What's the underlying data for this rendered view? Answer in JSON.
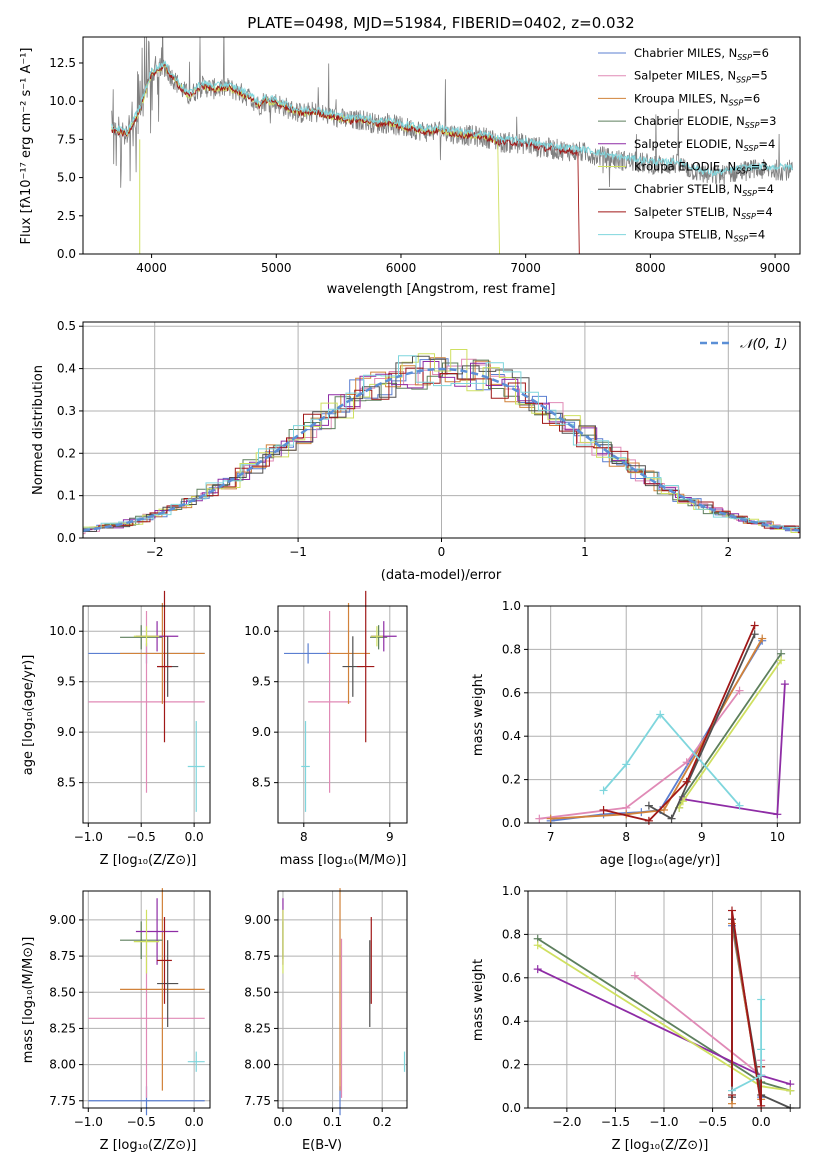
{
  "colors": {
    "blue": "#5b7fd1",
    "pink": "#e08ab6",
    "orange": "#d1823a",
    "green": "#5d7f5d",
    "purple": "#8e2ca5",
    "yellowgreen": "#cfe060",
    "darkgray": "#505050",
    "darkred": "#a01818",
    "cyan": "#7fd6dd",
    "spectrum": "#808080",
    "normal": "#5b8fd6"
  },
  "spectrum": {
    "title": "PLATE=0498, MJD=51984, FIBERID=0402, z=0.032",
    "xlabel": "wavelength [Angstrom, rest frame]",
    "ylabel": "Flux [fλ10⁻¹⁷ erg cm⁻² s⁻¹ A⁻¹]",
    "xticks": [
      "4000",
      "5000",
      "6000",
      "7000",
      "8000",
      "9000"
    ],
    "yticks": [
      "0.0",
      "2.5",
      "5.0",
      "7.5",
      "10.0",
      "12.5"
    ],
    "legend": [
      {
        "label": "Chabrier MILES, N",
        "sub": "SSP",
        "val": "=6",
        "color": "#5b7fd1"
      },
      {
        "label": "Salpeter MILES, N",
        "sub": "SSP",
        "val": "=5",
        "color": "#e08ab6"
      },
      {
        "label": "Kroupa MILES, N",
        "sub": "SSP",
        "val": "=6",
        "color": "#d1823a"
      },
      {
        "label": "Chabrier ELODIE, N",
        "sub": "SSP",
        "val": "=3",
        "color": "#5d7f5d"
      },
      {
        "label": "Salpeter ELODIE, N",
        "sub": "SSP",
        "val": "=4",
        "color": "#8e2ca5"
      },
      {
        "label": "Kroupa ELODIE, N",
        "sub": "SSP",
        "val": "=3",
        "color": "#cfe060"
      },
      {
        "label": "Chabrier STELIB, N",
        "sub": "SSP",
        "val": "=4",
        "color": "#505050"
      },
      {
        "label": "Salpeter STELIB, N",
        "sub": "SSP",
        "val": "=4",
        "color": "#a01818"
      },
      {
        "label": "Kroupa STELIB, N",
        "sub": "SSP",
        "val": "=4",
        "color": "#7fd6dd"
      }
    ]
  },
  "histogram": {
    "xlabel": "(data-model)/error",
    "ylabel": "Normed distribution",
    "xticks": [
      "−2",
      "−1",
      "0",
      "1",
      "2"
    ],
    "yticks": [
      "0.0",
      "0.1",
      "0.2",
      "0.3",
      "0.4",
      "0.5"
    ],
    "legend": "𝒩(0, 1)"
  },
  "panels": {
    "age_ylabel": "age  [log₁₀(age/yr)]",
    "mass_ylabel": "mass [log₁₀(M/M⊙)]",
    "z_xlabel": "Z [log₁₀(Z/Z⊙)]",
    "mass_xlabel": "mass [log₁₀(M/M⊙)]",
    "ebv_xlabel": "E(B-V)",
    "weight_ylabel": "mass weight",
    "age_xlabel": "age  [log₁₀(age/yr)]",
    "zw_xlabel": "Z [log₁₀(Z/Z⊙)]",
    "a1_xticks": [
      "−1.0",
      "−0.5",
      "0.0"
    ],
    "a1_yticks": [
      "8.5",
      "9.0",
      "9.5",
      "10.0"
    ],
    "a2_xticks": [
      "8",
      "9"
    ],
    "b1_yticks": [
      "7.75",
      "8.00",
      "8.25",
      "8.50",
      "8.75",
      "9.00"
    ],
    "b2_xticks": [
      "0.0",
      "0.1",
      "0.2"
    ],
    "c_xticks": [
      "7",
      "8",
      "9",
      "10"
    ],
    "w_yticks": [
      "0.0",
      "0.2",
      "0.4",
      "0.6",
      "0.8",
      "1.0"
    ],
    "d_xticks": [
      "−2.0",
      "−1.5",
      "−1.0",
      "−0.5",
      "0.0"
    ]
  },
  "chart_data": [
    {
      "type": "line",
      "title": "PLATE=0498, MJD=51984, FIBERID=0402, z=0.032",
      "xlabel": "wavelength [Angstrom, rest frame]",
      "ylabel": "Flux [fλ10⁻¹⁷ erg cm⁻² s⁻¹ A⁻¹]",
      "xlim": [
        3450,
        9200
      ],
      "ylim": [
        0,
        14.2
      ],
      "model_x": [
        3700,
        3800,
        3900,
        4000,
        4100,
        4200,
        4300,
        4400,
        4500,
        4600,
        4700,
        4800,
        4860,
        4900,
        5000,
        5100,
        5200,
        5300,
        5400,
        5500,
        5600,
        5700,
        5800,
        5900,
        6000,
        6100,
        6200,
        6300,
        6400,
        6500,
        6600,
        6700,
        6800,
        6900,
        7000,
        7100,
        7200,
        7300,
        7400,
        7500,
        7600,
        7700,
        7800,
        7900,
        8000,
        8100,
        8200,
        8300,
        8400,
        8500,
        8600,
        8700,
        8800
      ],
      "model_y": [
        8.1,
        7.8,
        9.3,
        11.8,
        12.3,
        11.2,
        10.3,
        11.0,
        10.8,
        10.9,
        10.6,
        10.2,
        9.7,
        10.0,
        9.9,
        9.5,
        9.2,
        9.3,
        9.1,
        8.9,
        8.7,
        8.8,
        8.5,
        8.6,
        8.3,
        8.2,
        8.0,
        8.1,
        7.9,
        7.8,
        7.7,
        7.6,
        7.3,
        7.3,
        7.2,
        7.0,
        6.9,
        6.8,
        6.7,
        6.6,
        6.4,
        6.2,
        6.1,
        6.0,
        5.9,
        5.8,
        5.9,
        5.6,
        5.3,
        5.1,
        5.2,
        5.4,
        5.5
      ]
    },
    {
      "type": "bar",
      "title": "",
      "xlabel": "(data-model)/error",
      "ylabel": "Normed distribution",
      "xlim": [
        -2.5,
        2.5
      ],
      "ylim": [
        0,
        0.51
      ],
      "gaussian": {
        "mean": 0,
        "sigma": 1,
        "name": "𝒩(0, 1)"
      }
    },
    {
      "type": "scatter",
      "title": "",
      "xlabel": "Z [log₁₀(Z/Z⊙)]",
      "ylabel": "age  [log₁₀(age/yr)]",
      "xlim": [
        -1.05,
        0.15
      ],
      "ylim": [
        8.1,
        10.25
      ],
      "series": [
        {
          "color": "blue",
          "x": -0.45,
          "xerr": 0.55,
          "y": 9.78,
          "yerr": 0.1
        },
        {
          "color": "pink",
          "x": -0.45,
          "xerr": 0.55,
          "y": 9.3,
          "yerr": 0.9
        },
        {
          "color": "orange",
          "x": -0.3,
          "xerr": 0.4,
          "y": 9.78,
          "yerr": 0.5
        },
        {
          "color": "green",
          "x": -0.5,
          "xerr": 0.2,
          "y": 9.94,
          "yerr": 0.12
        },
        {
          "color": "purple",
          "x": -0.35,
          "xerr": 0.2,
          "y": 9.95,
          "yerr": 0.15
        },
        {
          "color": "yellowgreen",
          "x": -0.45,
          "xerr": 0.12,
          "y": 9.95,
          "yerr": 0.1
        },
        {
          "color": "darkgray",
          "x": -0.25,
          "xerr": 0.1,
          "y": 9.65,
          "yerr": 0.3
        },
        {
          "color": "darkred",
          "x": -0.28,
          "xerr": 0.07,
          "y": 9.65,
          "yerr": 0.75
        },
        {
          "color": "cyan",
          "x": 0.02,
          "xerr": 0.08,
          "y": 8.66,
          "yerr": 0.45
        }
      ]
    },
    {
      "type": "scatter",
      "title": "",
      "xlabel": "mass [log₁₀(M/M⊙)]",
      "ylabel": "",
      "xlim": [
        7.7,
        9.2
      ],
      "ylim": [
        8.1,
        10.25
      ],
      "series": [
        {
          "color": "blue",
          "x": 8.05,
          "y": 9.78
        },
        {
          "color": "pink",
          "x": 8.3,
          "y": 9.3
        },
        {
          "color": "orange",
          "x": 8.52,
          "y": 9.78
        },
        {
          "color": "green",
          "x": 8.87,
          "y": 9.94
        },
        {
          "color": "purple",
          "x": 8.93,
          "y": 9.95
        },
        {
          "color": "yellowgreen",
          "x": 8.85,
          "y": 9.95
        },
        {
          "color": "darkgray",
          "x": 8.57,
          "y": 9.65
        },
        {
          "color": "darkred",
          "x": 8.72,
          "y": 9.65
        },
        {
          "color": "cyan",
          "x": 8.02,
          "y": 8.66
        }
      ]
    },
    {
      "type": "line",
      "title": "",
      "xlabel": "age  [log₁₀(age/yr)]",
      "ylabel": "mass weight",
      "xlim": [
        6.7,
        10.3
      ],
      "ylim": [
        0,
        1
      ],
      "series": [
        {
          "color": "blue",
          "x": [
            7.0,
            7.7,
            8.2,
            8.45,
            9.8
          ],
          "y": [
            0.01,
            0.04,
            0.05,
            0.06,
            0.84
          ]
        },
        {
          "color": "pink",
          "x": [
            6.85,
            8.0,
            8.8,
            9.5
          ],
          "y": [
            0.02,
            0.07,
            0.28,
            0.61
          ]
        },
        {
          "color": "orange",
          "x": [
            7.0,
            8.0,
            8.5,
            9.8
          ],
          "y": [
            0.02,
            0.04,
            0.06,
            0.85
          ]
        },
        {
          "color": "green",
          "x": [
            8.7,
            8.75,
            10.05
          ],
          "y": [
            0.07,
            0.12,
            0.78
          ]
        },
        {
          "color": "purple",
          "x": [
            8.75,
            10.0,
            10.1
          ],
          "y": [
            0.11,
            0.04,
            0.64
          ]
        },
        {
          "color": "yellowgreen",
          "x": [
            8.7,
            8.75,
            10.05
          ],
          "y": [
            0.07,
            0.1,
            0.75
          ]
        },
        {
          "color": "darkgray",
          "x": [
            8.3,
            8.6,
            9.7
          ],
          "y": [
            0.08,
            0.02,
            0.87
          ]
        },
        {
          "color": "darkred",
          "x": [
            7.7,
            8.3,
            8.8,
            9.7
          ],
          "y": [
            0.06,
            0.01,
            0.19,
            0.91
          ]
        },
        {
          "color": "cyan",
          "x": [
            7.7,
            8.0,
            8.45,
            9.5
          ],
          "y": [
            0.15,
            0.27,
            0.5,
            0.08
          ]
        }
      ]
    },
    {
      "type": "line",
      "title": "",
      "xlabel": "Z [log₁₀(Z/Z⊙)]",
      "ylabel": "mass weight",
      "xlim": [
        -2.4,
        0.4
      ],
      "ylim": [
        0,
        1
      ],
      "series": [
        {
          "color": "blue",
          "x": [
            -0.3,
            -0.3,
            0.0,
            0.0
          ],
          "y": [
            0.05,
            0.84,
            0.05,
            0.15
          ]
        },
        {
          "color": "pink",
          "x": [
            -1.3,
            0.0,
            0.0
          ],
          "y": [
            0.61,
            0.15,
            0.22
          ]
        },
        {
          "color": "orange",
          "x": [
            -0.3,
            -0.3,
            0.0
          ],
          "y": [
            0.02,
            0.85,
            0.04
          ]
        },
        {
          "color": "green",
          "x": [
            -2.3,
            0.0,
            0.3
          ],
          "y": [
            0.78,
            0.12,
            0.08
          ]
        },
        {
          "color": "purple",
          "x": [
            -2.3,
            0.0,
            0.3
          ],
          "y": [
            0.64,
            0.15,
            0.11
          ]
        },
        {
          "color": "yellowgreen",
          "x": [
            -2.3,
            0.0,
            0.3
          ],
          "y": [
            0.75,
            0.1,
            0.08
          ]
        },
        {
          "color": "darkgray",
          "x": [
            -0.3,
            -0.3,
            0.0,
            0.3
          ],
          "y": [
            0.05,
            0.87,
            0.06,
            0.0
          ]
        },
        {
          "color": "darkred",
          "x": [
            -0.3,
            -0.3,
            0.0,
            0.0
          ],
          "y": [
            0.06,
            0.91,
            0.01,
            0.19
          ]
        },
        {
          "color": "cyan",
          "x": [
            -0.3,
            0.0,
            0.0,
            0.0
          ],
          "y": [
            0.08,
            0.15,
            0.27,
            0.5
          ]
        }
      ]
    }
  ]
}
